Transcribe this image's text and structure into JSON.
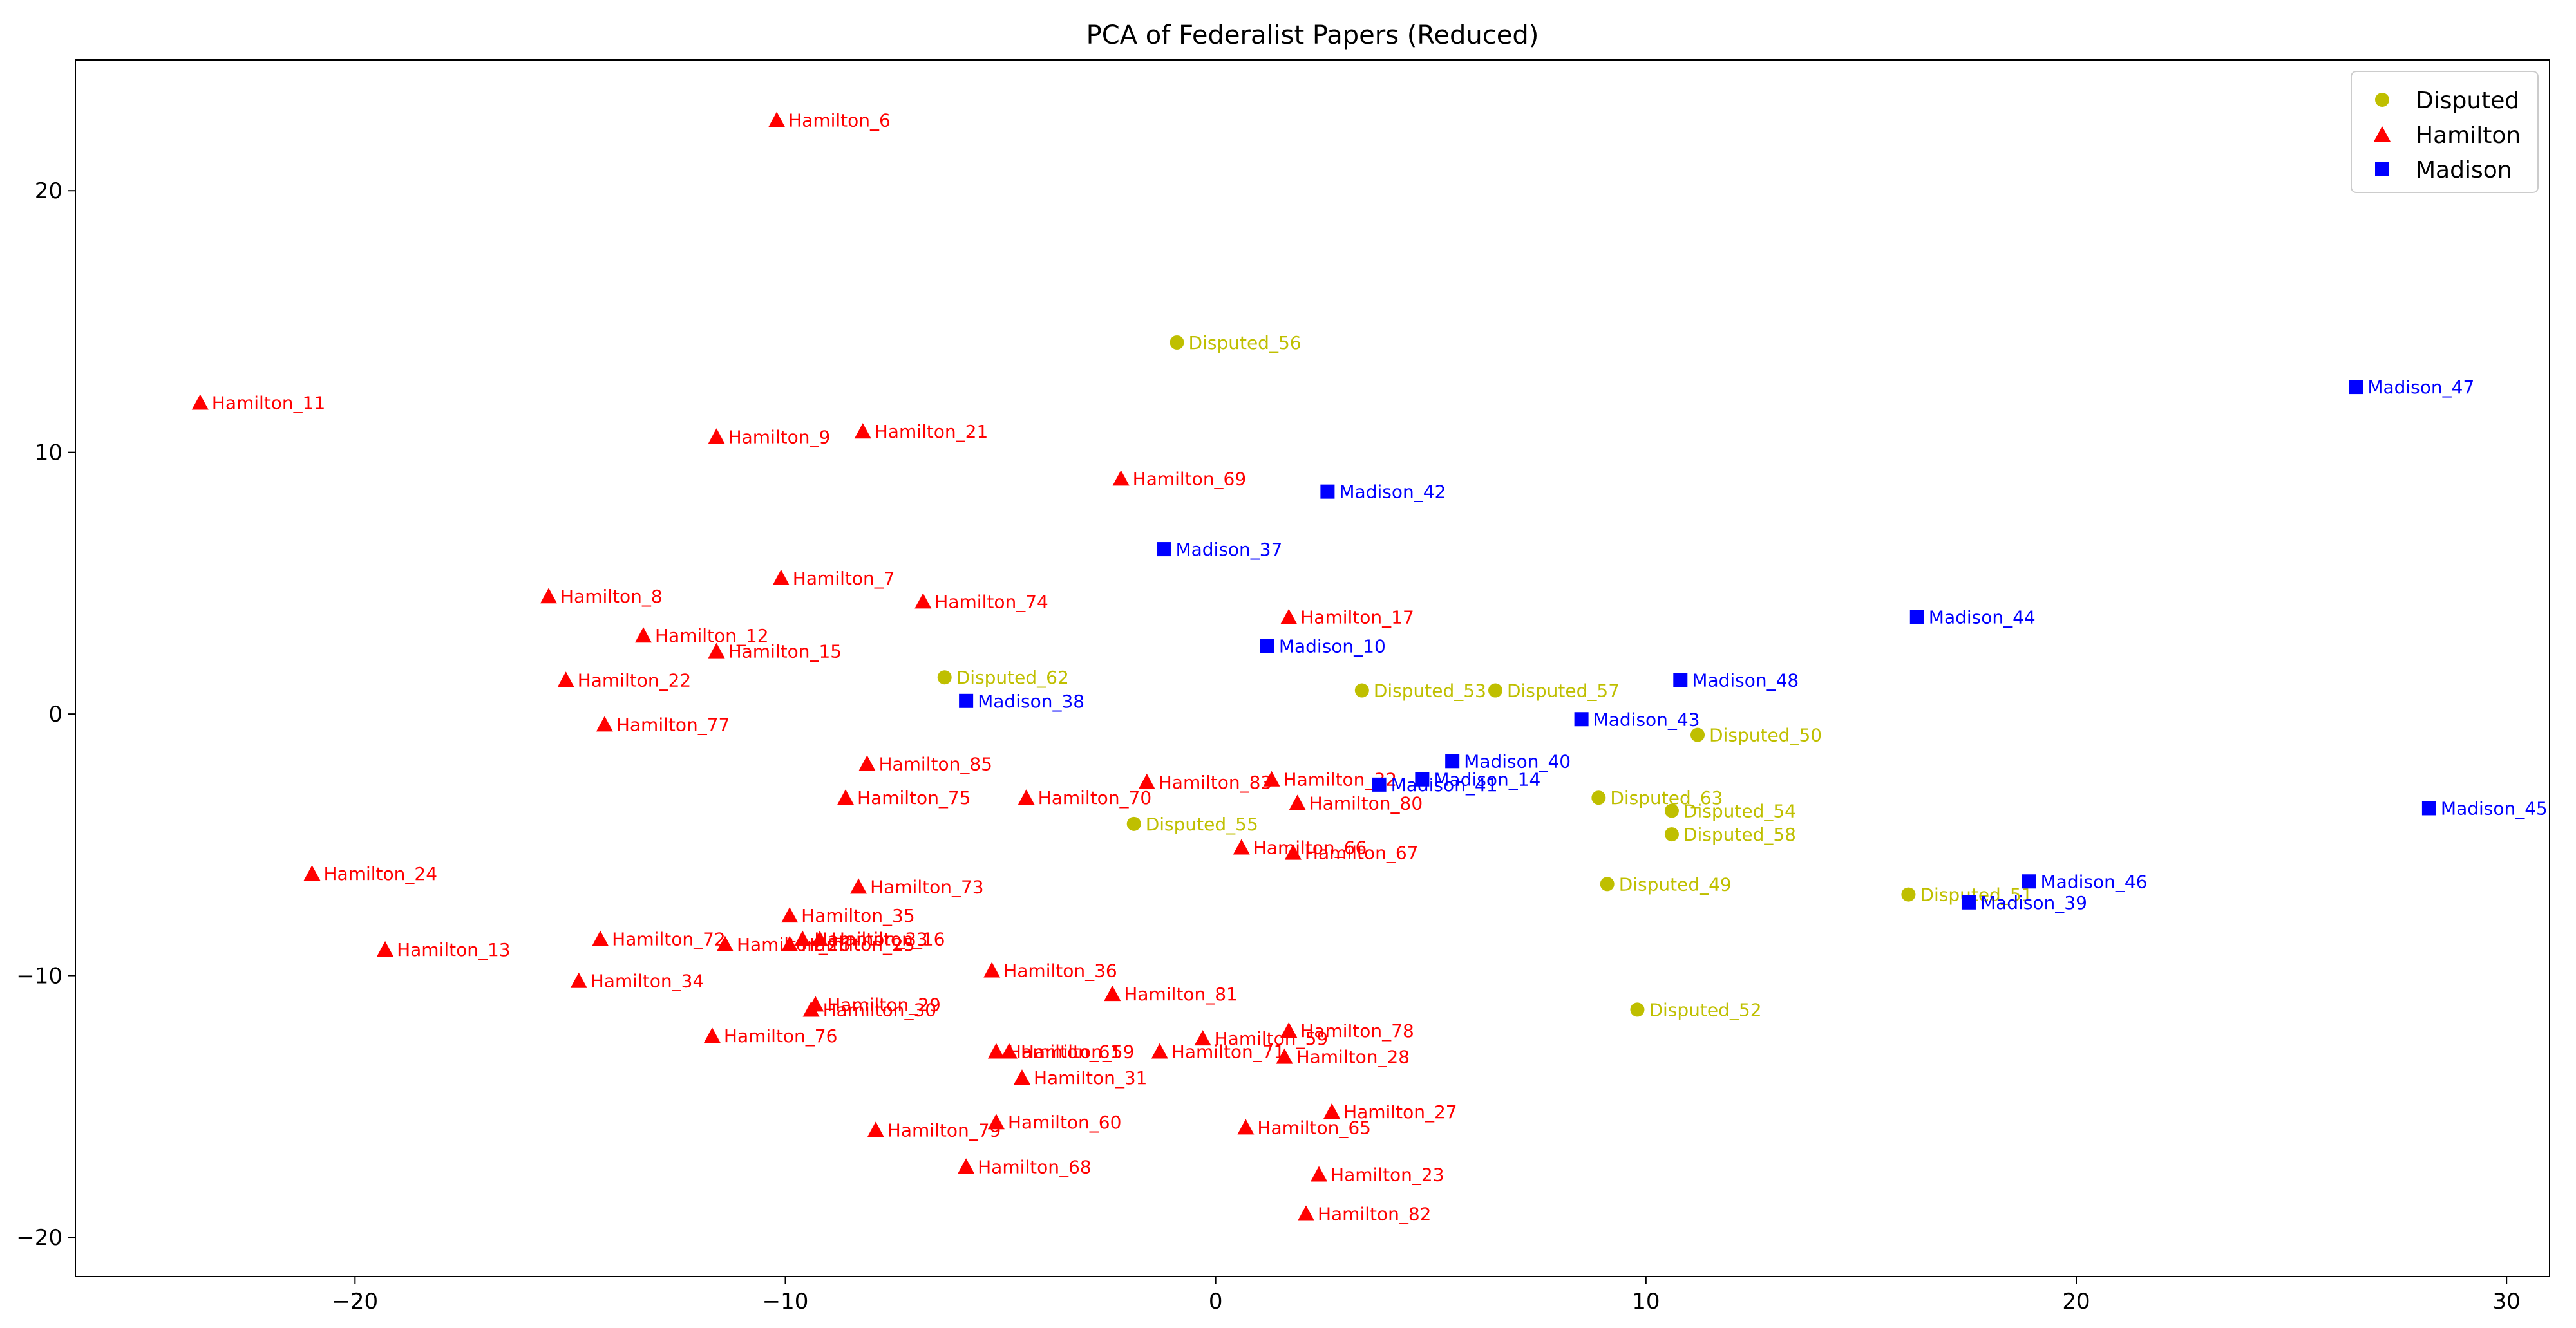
{
  "chart_data": {
    "type": "scatter",
    "title": "PCA of Federalist Papers (Reduced)",
    "xlabel": "",
    "ylabel": "",
    "xlim": [
      -26.5,
      31
    ],
    "ylim": [
      -21.5,
      25
    ],
    "xticks": [
      -20,
      -10,
      0,
      10,
      20,
      30
    ],
    "yticks": [
      -20,
      -10,
      0,
      10,
      20
    ],
    "grid": false,
    "legend": "top-right",
    "series": [
      {
        "name": "Disputed",
        "marker": "circle",
        "color": "#bfbf00",
        "points": [
          {
            "label": "Disputed_56",
            "x": -0.9,
            "y": 14.2
          },
          {
            "label": "Disputed_62",
            "x": -6.3,
            "y": 1.4
          },
          {
            "label": "Disputed_53",
            "x": 3.4,
            "y": 0.9
          },
          {
            "label": "Disputed_57",
            "x": 6.5,
            "y": 0.9
          },
          {
            "label": "Disputed_50",
            "x": 11.2,
            "y": -0.8
          },
          {
            "label": "Disputed_55",
            "x": -1.9,
            "y": -4.2
          },
          {
            "label": "Disputed_63",
            "x": 8.9,
            "y": -3.2
          },
          {
            "label": "Disputed_54",
            "x": 10.6,
            "y": -3.7
          },
          {
            "label": "Disputed_58",
            "x": 10.6,
            "y": -4.6
          },
          {
            "label": "Disputed_49",
            "x": 9.1,
            "y": -6.5
          },
          {
            "label": "Disputed_51",
            "x": 16.1,
            "y": -6.9
          },
          {
            "label": "Disputed_52",
            "x": 9.8,
            "y": -11.3
          }
        ]
      },
      {
        "name": "Hamilton",
        "marker": "triangle",
        "color": "#ff0000",
        "points": [
          {
            "label": "Hamilton_6",
            "x": -10.2,
            "y": 22.7
          },
          {
            "label": "Hamilton_11",
            "x": -23.6,
            "y": 11.9
          },
          {
            "label": "Hamilton_9",
            "x": -11.6,
            "y": 10.6
          },
          {
            "label": "Hamilton_21",
            "x": -8.2,
            "y": 10.8
          },
          {
            "label": "Hamilton_69",
            "x": -2.2,
            "y": 9.0
          },
          {
            "label": "Hamilton_8",
            "x": -15.5,
            "y": 4.5
          },
          {
            "label": "Hamilton_7",
            "x": -10.1,
            "y": 5.2
          },
          {
            "label": "Hamilton_74",
            "x": -6.8,
            "y": 4.3
          },
          {
            "label": "Hamilton_17",
            "x": 1.7,
            "y": 3.7
          },
          {
            "label": "Hamilton_12",
            "x": -13.3,
            "y": 3.0
          },
          {
            "label": "Hamilton_15",
            "x": -11.6,
            "y": 2.4
          },
          {
            "label": "Hamilton_22",
            "x": -15.1,
            "y": 1.3
          },
          {
            "label": "Hamilton_77",
            "x": -14.2,
            "y": -0.4
          },
          {
            "label": "Hamilton_85",
            "x": -8.1,
            "y": -1.9
          },
          {
            "label": "Hamilton_83",
            "x": -1.6,
            "y": -2.6
          },
          {
            "label": "Hamilton_32",
            "x": 1.3,
            "y": -2.5
          },
          {
            "label": "Hamilton_75",
            "x": -8.6,
            "y": -3.2
          },
          {
            "label": "Hamilton_70",
            "x": -4.4,
            "y": -3.2
          },
          {
            "label": "Hamilton_80",
            "x": 1.9,
            "y": -3.4
          },
          {
            "label": "Hamilton_66",
            "x": 0.6,
            "y": -5.1
          },
          {
            "label": "Hamilton_67",
            "x": 1.8,
            "y": -5.3
          },
          {
            "label": "Hamilton_24",
            "x": -21.0,
            "y": -6.1
          },
          {
            "label": "Hamilton_73",
            "x": -8.3,
            "y": -6.6
          },
          {
            "label": "Hamilton_35",
            "x": -9.9,
            "y": -7.7
          },
          {
            "label": "Hamilton_72",
            "x": -14.3,
            "y": -8.6
          },
          {
            "label": "Hamilton_26",
            "x": -11.4,
            "y": -8.8
          },
          {
            "label": "Hamilton_25",
            "x": -9.9,
            "y": -8.8
          },
          {
            "label": "Hamilton_33",
            "x": -9.6,
            "y": -8.6
          },
          {
            "label": "Hamilton_16",
            "x": -9.2,
            "y": -8.6
          },
          {
            "label": "Hamilton_13",
            "x": -19.3,
            "y": -9.0
          },
          {
            "label": "Hamilton_36",
            "x": -5.2,
            "y": -9.8
          },
          {
            "label": "Hamilton_34",
            "x": -14.8,
            "y": -10.2
          },
          {
            "label": "Hamilton_81",
            "x": -2.4,
            "y": -10.7
          },
          {
            "label": "Hamilton_29",
            "x": -9.3,
            "y": -11.1
          },
          {
            "label": "Hamilton_30",
            "x": -9.4,
            "y": -11.3
          },
          {
            "label": "Hamilton_76",
            "x": -11.7,
            "y": -12.3
          },
          {
            "label": "Hamilton_78",
            "x": 1.7,
            "y": -12.1
          },
          {
            "label": "Hamilton_59",
            "x": -0.3,
            "y": -12.4
          },
          {
            "label": "Hamilton_61",
            "x": -5.1,
            "y": -12.9
          },
          {
            "label": "Hamilton_59",
            "x": -4.8,
            "y": -12.9
          },
          {
            "label": "Hamilton_71",
            "x": -1.3,
            "y": -12.9
          },
          {
            "label": "Hamilton_28",
            "x": 1.6,
            "y": -13.1
          },
          {
            "label": "Hamilton_31",
            "x": -4.5,
            "y": -13.9
          },
          {
            "label": "Hamilton_27",
            "x": 2.7,
            "y": -15.2
          },
          {
            "label": "Hamilton_60",
            "x": -5.1,
            "y": -15.6
          },
          {
            "label": "Hamilton_79",
            "x": -7.9,
            "y": -15.9
          },
          {
            "label": "Hamilton_65",
            "x": 0.7,
            "y": -15.8
          },
          {
            "label": "Hamilton_68",
            "x": -5.8,
            "y": -17.3
          },
          {
            "label": "Hamilton_23",
            "x": 2.4,
            "y": -17.6
          },
          {
            "label": "Hamilton_82",
            "x": 2.1,
            "y": -19.1
          }
        ]
      },
      {
        "name": "Madison",
        "marker": "square",
        "color": "#0000ff",
        "points": [
          {
            "label": "Madison_47",
            "x": 26.5,
            "y": 12.5
          },
          {
            "label": "Madison_42",
            "x": 2.6,
            "y": 8.5
          },
          {
            "label": "Madison_37",
            "x": -1.2,
            "y": 6.3
          },
          {
            "label": "Madison_44",
            "x": 16.3,
            "y": 3.7
          },
          {
            "label": "Madison_10",
            "x": 1.2,
            "y": 2.6
          },
          {
            "label": "Madison_48",
            "x": 10.8,
            "y": 1.3
          },
          {
            "label": "Madison_38",
            "x": -5.8,
            "y": 0.5
          },
          {
            "label": "Madison_43",
            "x": 8.5,
            "y": -0.2
          },
          {
            "label": "Madison_40",
            "x": 5.5,
            "y": -1.8
          },
          {
            "label": "Madison_14",
            "x": 4.8,
            "y": -2.5
          },
          {
            "label": "Madison_41",
            "x": 3.8,
            "y": -2.7
          },
          {
            "label": "Madison_45",
            "x": 28.2,
            "y": -3.6
          },
          {
            "label": "Madison_46",
            "x": 18.9,
            "y": -6.4
          },
          {
            "label": "Madison_39",
            "x": 17.5,
            "y": -7.2
          }
        ]
      }
    ]
  }
}
